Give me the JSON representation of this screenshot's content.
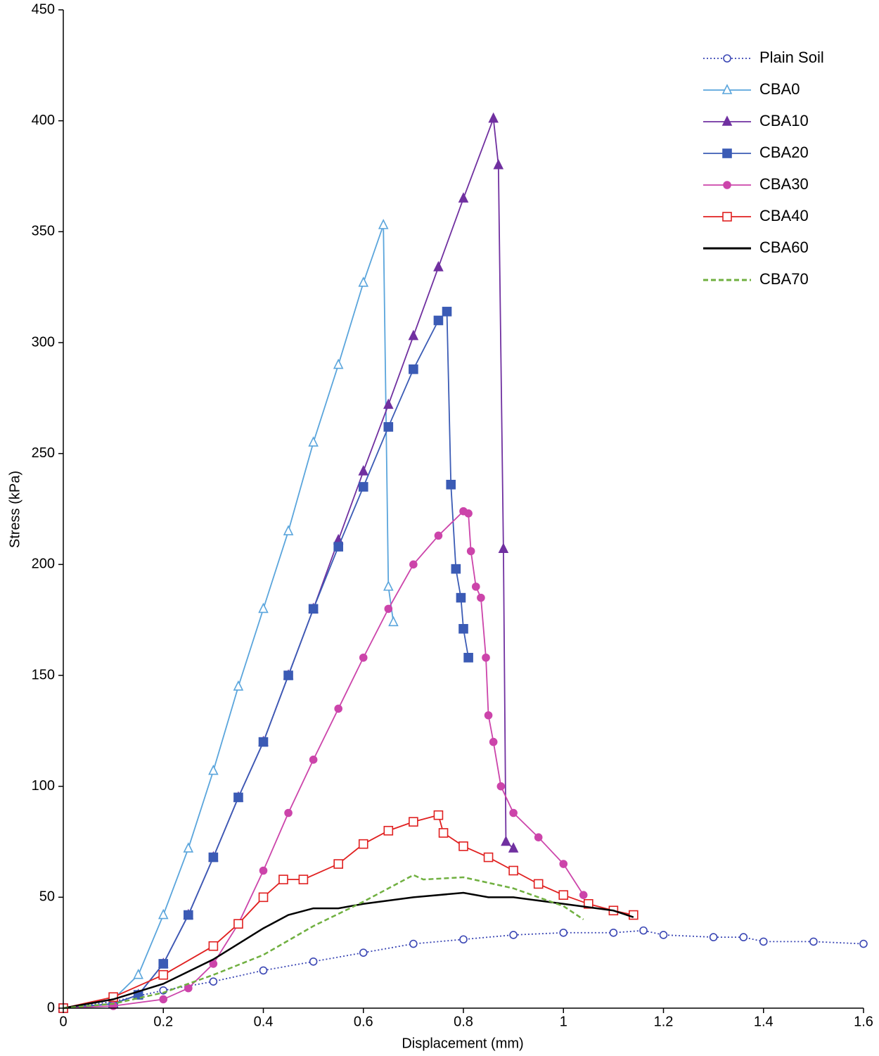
{
  "chart_data": {
    "type": "line",
    "x_label": "Displacement (mm)",
    "y_label": "Stress (kPa)",
    "xlim": [
      0,
      1.6
    ],
    "xticks": [
      0,
      0.2,
      0.4,
      0.6,
      0.8,
      1,
      1.2,
      1.4,
      1.6
    ],
    "ylim": [
      0,
      450
    ],
    "yticks": [
      0,
      50,
      100,
      150,
      200,
      250,
      300,
      350,
      400,
      450
    ],
    "grid": false,
    "legend": "upper right",
    "series": [
      {
        "name": "Plain Soil",
        "color": "#3a46b4",
        "marker": "circle-open",
        "dash": "dotted",
        "x": [
          0,
          0.1,
          0.2,
          0.3,
          0.4,
          0.5,
          0.6,
          0.7,
          0.8,
          0.9,
          1.0,
          1.1,
          1.16,
          1.2,
          1.3,
          1.36,
          1.4,
          1.5,
          1.6
        ],
        "values": [
          0,
          3,
          8,
          12,
          17,
          21,
          25,
          29,
          31,
          33,
          34,
          34,
          35,
          33,
          32,
          32,
          30,
          30,
          29
        ]
      },
      {
        "name": "CBA0",
        "color": "#5aa5dc",
        "marker": "triangle-open",
        "dash": "solid",
        "x": [
          0,
          0.1,
          0.15,
          0.2,
          0.25,
          0.3,
          0.35,
          0.4,
          0.45,
          0.5,
          0.55,
          0.6,
          0.64,
          0.65,
          0.66
        ],
        "values": [
          0,
          4,
          15,
          42,
          72,
          107,
          145,
          180,
          215,
          255,
          290,
          327,
          353,
          190,
          174
        ]
      },
      {
        "name": "CBA10",
        "color": "#7030a0",
        "marker": "triangle",
        "dash": "solid",
        "x": [
          0,
          0.1,
          0.15,
          0.2,
          0.25,
          0.3,
          0.35,
          0.4,
          0.45,
          0.5,
          0.55,
          0.6,
          0.65,
          0.7,
          0.75,
          0.8,
          0.86,
          0.87,
          0.88,
          0.885,
          0.9
        ],
        "values": [
          0,
          2,
          6,
          20,
          42,
          68,
          95,
          120,
          150,
          180,
          211,
          242,
          272,
          303,
          334,
          365,
          401,
          380,
          207,
          75,
          72
        ]
      },
      {
        "name": "CBA20",
        "color": "#3b5bb5",
        "marker": "square",
        "dash": "solid",
        "x": [
          0,
          0.1,
          0.15,
          0.2,
          0.25,
          0.3,
          0.35,
          0.4,
          0.45,
          0.5,
          0.55,
          0.6,
          0.65,
          0.7,
          0.75,
          0.767,
          0.775,
          0.785,
          0.795,
          0.8,
          0.81
        ],
        "values": [
          0,
          2,
          6,
          20,
          42,
          68,
          95,
          120,
          150,
          180,
          208,
          235,
          262,
          288,
          310,
          314,
          236,
          198,
          185,
          171,
          158
        ]
      },
      {
        "name": "CBA30",
        "color": "#cc44aa",
        "marker": "circle",
        "dash": "solid",
        "x": [
          0,
          0.1,
          0.2,
          0.25,
          0.3,
          0.35,
          0.4,
          0.45,
          0.5,
          0.55,
          0.6,
          0.65,
          0.7,
          0.75,
          0.8,
          0.81,
          0.815,
          0.825,
          0.835,
          0.845,
          0.85,
          0.86,
          0.875,
          0.9,
          0.95,
          1.0,
          1.04
        ],
        "values": [
          0,
          1,
          4,
          9,
          20,
          38,
          62,
          88,
          112,
          135,
          158,
          180,
          200,
          213,
          224,
          223,
          206,
          190,
          185,
          158,
          132,
          120,
          100,
          88,
          77,
          65,
          51
        ]
      },
      {
        "name": "CBA40",
        "color": "#e02020",
        "marker": "square-open",
        "dash": "solid",
        "x": [
          0,
          0.1,
          0.2,
          0.3,
          0.35,
          0.4,
          0.44,
          0.48,
          0.55,
          0.6,
          0.65,
          0.7,
          0.75,
          0.76,
          0.8,
          0.85,
          0.9,
          0.95,
          1.0,
          1.05,
          1.1,
          1.14
        ],
        "values": [
          0,
          5,
          15,
          28,
          38,
          50,
          58,
          58,
          65,
          74,
          80,
          84,
          87,
          79,
          73,
          68,
          62,
          56,
          51,
          47,
          44,
          42
        ]
      },
      {
        "name": "CBA60",
        "color": "#000000",
        "marker": "none",
        "dash": "solid",
        "x": [
          0,
          0.1,
          0.2,
          0.3,
          0.4,
          0.45,
          0.5,
          0.55,
          0.6,
          0.7,
          0.8,
          0.85,
          0.9,
          1.0,
          1.1,
          1.14
        ],
        "values": [
          0,
          4,
          11,
          22,
          36,
          42,
          45,
          45,
          47,
          50,
          52,
          50,
          50,
          47,
          44,
          41
        ]
      },
      {
        "name": "CBA70",
        "color": "#70b040",
        "marker": "none",
        "dash": "dashed",
        "x": [
          0,
          0.1,
          0.2,
          0.3,
          0.4,
          0.5,
          0.6,
          0.7,
          0.72,
          0.8,
          0.9,
          1.0,
          1.04
        ],
        "values": [
          0,
          2,
          7,
          15,
          24,
          37,
          48,
          60,
          58,
          59,
          54,
          46,
          40
        ]
      }
    ]
  }
}
